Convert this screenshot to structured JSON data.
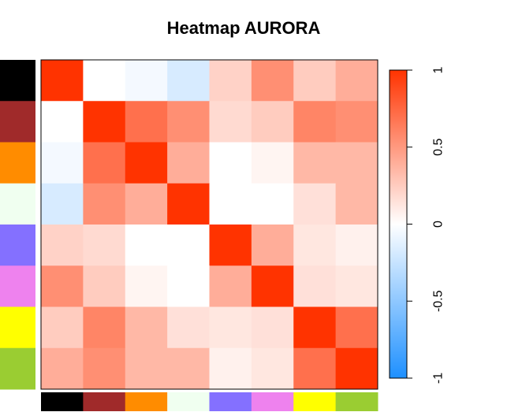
{
  "chart_data": {
    "type": "heatmap",
    "title": "Heatmap AURORA",
    "rows": 8,
    "cols": 8,
    "row_annotation_colors": [
      "#000000",
      "#A02A2A",
      "#FF8C00",
      "#F0FFF0",
      "#8470FF",
      "#EE82EE",
      "#FFFF00",
      "#9ACD32"
    ],
    "col_annotation_colors": [
      "#000000",
      "#A02A2A",
      "#FF8C00",
      "#F0FFF0",
      "#8470FF",
      "#EE82EE",
      "#FFFF00",
      "#9ACD32"
    ],
    "matrix": [
      [
        1.0,
        0.0,
        -0.05,
        -0.18,
        0.22,
        0.55,
        0.25,
        0.4
      ],
      [
        0.0,
        1.0,
        0.7,
        0.55,
        0.18,
        0.25,
        0.6,
        0.55
      ],
      [
        -0.05,
        0.7,
        1.0,
        0.4,
        0.0,
        0.05,
        0.35,
        0.35
      ],
      [
        -0.18,
        0.55,
        0.4,
        1.0,
        0.0,
        0.0,
        0.15,
        0.35
      ],
      [
        0.22,
        0.18,
        0.0,
        0.0,
        1.0,
        0.4,
        0.12,
        0.07
      ],
      [
        0.55,
        0.25,
        0.05,
        0.0,
        0.4,
        1.0,
        0.15,
        0.12
      ],
      [
        0.25,
        0.6,
        0.35,
        0.15,
        0.12,
        0.15,
        1.0,
        0.7
      ],
      [
        0.4,
        0.55,
        0.35,
        0.35,
        0.07,
        0.12,
        0.7,
        1.0
      ]
    ],
    "color_scale": {
      "min": -1,
      "mid": 0,
      "max": 1,
      "low_color": "#1E90FF",
      "mid_color": "#FFFFFF",
      "high_color": "#FF3300"
    },
    "legend": {
      "position": "right",
      "ticks": [
        1,
        0.5,
        0,
        -0.5,
        -1
      ],
      "tick_labels": [
        "1",
        "0.5",
        "0",
        "-0.5",
        "-1"
      ]
    }
  }
}
